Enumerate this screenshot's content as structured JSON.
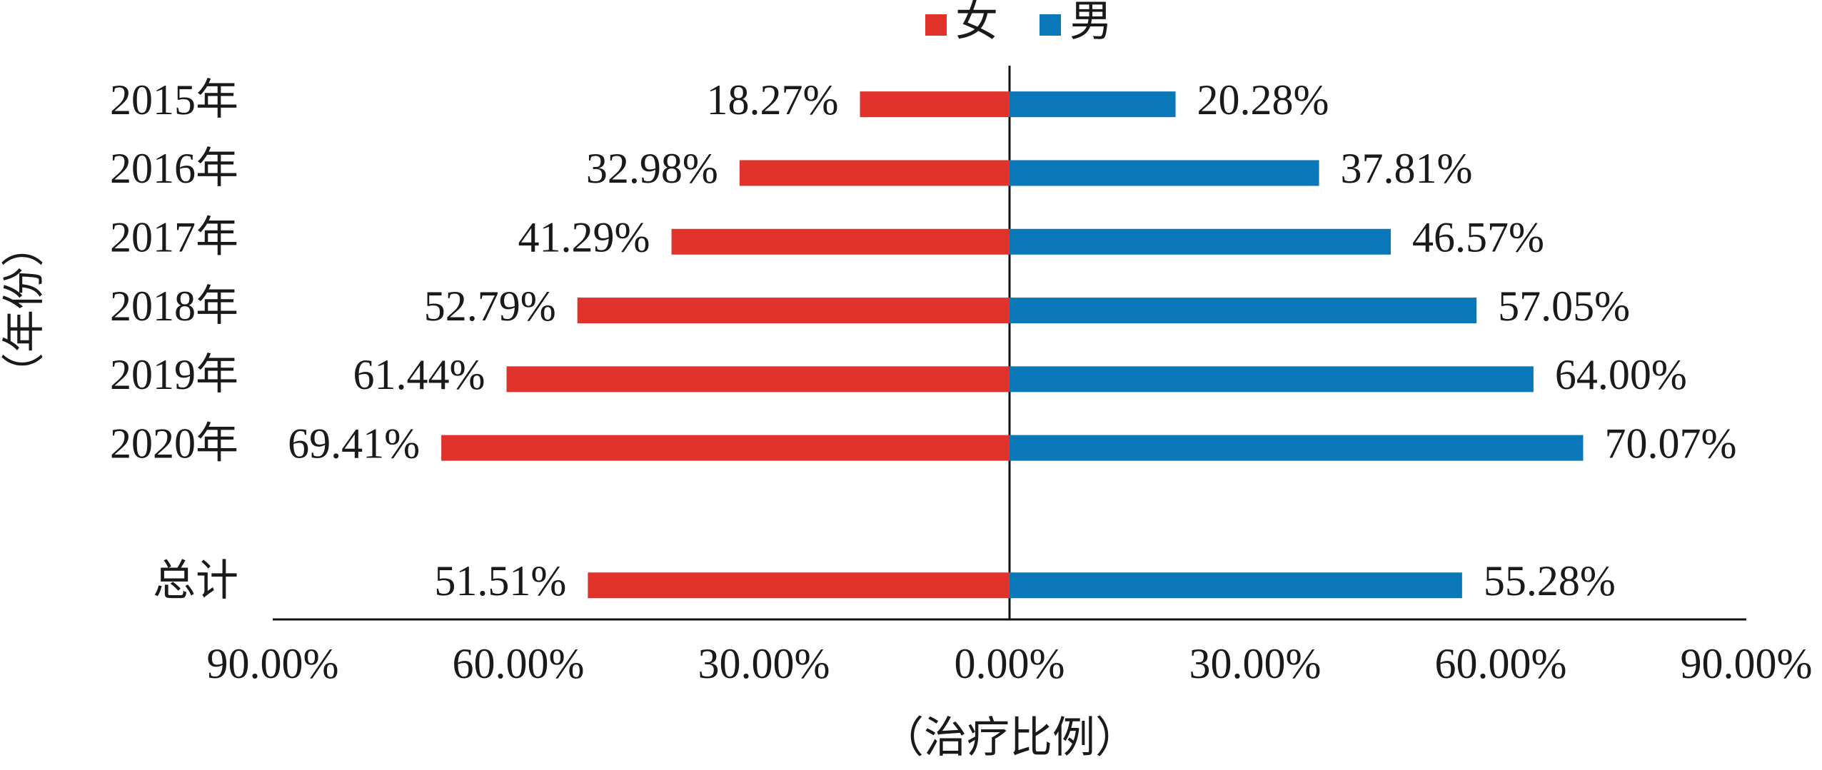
{
  "chart_data": {
    "type": "butterfly-bar",
    "categories": [
      "2015年",
      "2016年",
      "2017年",
      "2018年",
      "2019年",
      "2020年",
      null,
      "总计"
    ],
    "series": [
      {
        "name": "女",
        "color": "#e1322c",
        "side": "left",
        "values": [
          18.27,
          32.98,
          41.29,
          52.79,
          61.44,
          69.41,
          null,
          51.51
        ],
        "value_labels": [
          "18.27%",
          "32.98%",
          "41.29%",
          "52.79%",
          "61.44%",
          "69.41%",
          null,
          "51.51%"
        ]
      },
      {
        "name": "男",
        "color": "#0a77b8",
        "side": "right",
        "values": [
          20.28,
          37.81,
          46.57,
          57.05,
          64.0,
          70.07,
          null,
          55.28
        ],
        "value_labels": [
          "20.28%",
          "37.81%",
          "46.57%",
          "57.05%",
          "64.00%",
          "70.07%",
          null,
          "55.28%"
        ]
      }
    ],
    "xlim": [
      -90,
      90
    ],
    "xticks": [
      {
        "value": -90,
        "label": "90.00%"
      },
      {
        "value": -60,
        "label": "60.00%"
      },
      {
        "value": -30,
        "label": "30.00%"
      },
      {
        "value": 0,
        "label": "0.00%"
      },
      {
        "value": 30,
        "label": "30.00%"
      },
      {
        "value": 60,
        "label": "60.00%"
      },
      {
        "value": 90,
        "label": "90.00%"
      }
    ],
    "x_label": "（治疗比例）",
    "y_label": "（年份）",
    "legend": "top"
  }
}
